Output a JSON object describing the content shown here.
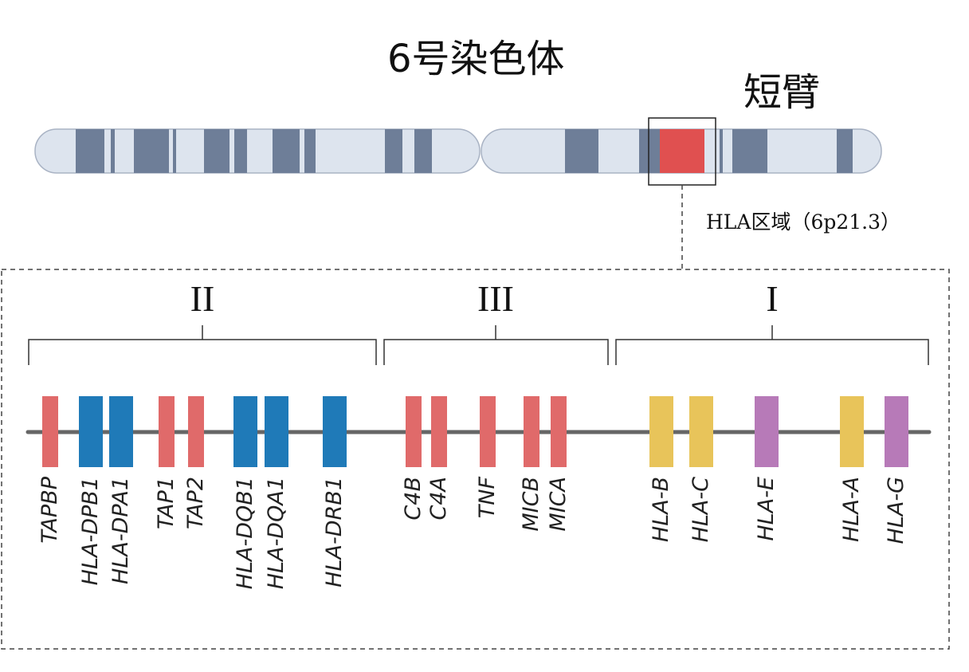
{
  "title": "6号染色体",
  "arm_label": "短臂",
  "region_label": "HLA区域（6p21.3）",
  "class_labels": [
    "II",
    "III",
    "I"
  ],
  "genes": [
    {
      "name": "TAPBP",
      "color": "#e06a6a"
    },
    {
      "name": "HLA-DPB1",
      "color": "#1f7ab8"
    },
    {
      "name": "HLA-DPA1",
      "color": "#1f7ab8"
    },
    {
      "name": "TAP1",
      "color": "#e06a6a"
    },
    {
      "name": "TAP2",
      "color": "#e06a6a"
    },
    {
      "name": "HLA-DQB1",
      "color": "#1f7ab8"
    },
    {
      "name": "HLA-DQA1",
      "color": "#1f7ab8"
    },
    {
      "name": "HLA-DRB1",
      "color": "#1f7ab8"
    },
    {
      "name": "C4B",
      "color": "#e06a6a"
    },
    {
      "name": "C4A",
      "color": "#e06a6a"
    },
    {
      "name": "TNF",
      "color": "#e06a6a"
    },
    {
      "name": "MICB",
      "color": "#e06a6a"
    },
    {
      "name": "MICA",
      "color": "#e06a6a"
    },
    {
      "name": "HLA-B",
      "color": "#e8c45a"
    },
    {
      "name": "HLA-C",
      "color": "#e8c45a"
    },
    {
      "name": "HLA-E",
      "color": "#b77ab8"
    },
    {
      "name": "HLA-A",
      "color": "#e8c45a"
    },
    {
      "name": "HLA-G",
      "color": "#b77ab8"
    }
  ],
  "colors": {
    "chromosome_fill": "#dde4ee",
    "chromosome_band": "#6e7e98",
    "highlight": "#e05050",
    "axis_line": "#666666"
  }
}
